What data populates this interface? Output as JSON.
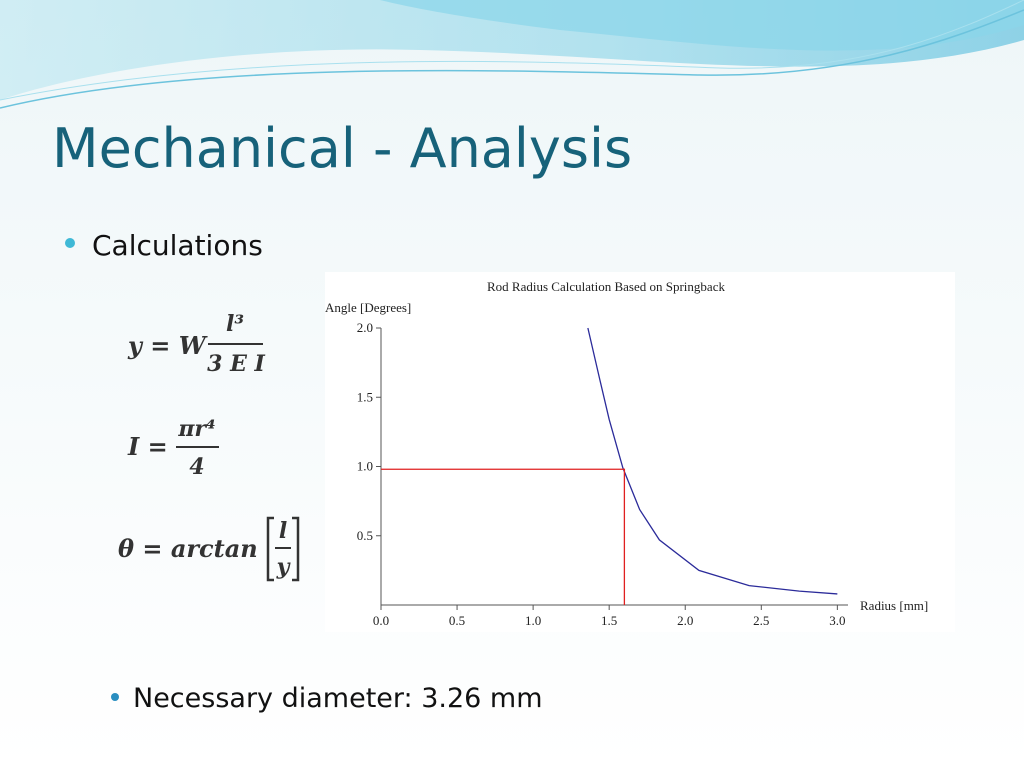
{
  "title": "Mechanical - Analysis",
  "bullets": [
    "Calculations",
    "Necessary diameter: 3.26 mm"
  ],
  "formulas": [
    {
      "lhs": "y = W",
      "numerator": "l³",
      "denominator": "3 E I"
    },
    {
      "lhs": "I =",
      "numerator": "πr⁴",
      "denominator": "4"
    },
    {
      "lhs": "θ = arctan",
      "numerator": "l",
      "denominator": "y"
    }
  ],
  "chart_data": {
    "type": "line",
    "title": "Rod Radius Calculation Based on Springback",
    "y_label": "Angle [Degrees]",
    "x_label": "Radius [mm]",
    "xlim": [
      0,
      3.07
    ],
    "ylim": [
      0,
      2.0
    ],
    "xticks": [
      {
        "value": 0,
        "label": "0.0"
      },
      0.5,
      {
        "value": 1,
        "label": "1.0"
      },
      1.5,
      {
        "value": 2,
        "label": "2.0"
      },
      2.5,
      {
        "value": 3,
        "label": "3.0"
      }
    ],
    "yticks": [
      0.5,
      {
        "value": 1,
        "label": "1.0"
      },
      1.5,
      {
        "value": 2,
        "label": "2.0"
      }
    ],
    "series": [
      {
        "color": "#2b2b9a",
        "x": [
          1.36,
          1.44,
          1.5,
          1.59,
          1.7,
          1.83,
          2.09,
          2.42,
          2.75,
          3.0
        ],
        "values": [
          2.0,
          1.62,
          1.34,
          0.99,
          0.69,
          0.47,
          0.25,
          0.14,
          0.1,
          0.08
        ]
      },
      {
        "color": "#e02020",
        "x": [
          0,
          1.6,
          1.6
        ],
        "values": [
          0.98,
          0.98,
          0
        ]
      }
    ]
  }
}
